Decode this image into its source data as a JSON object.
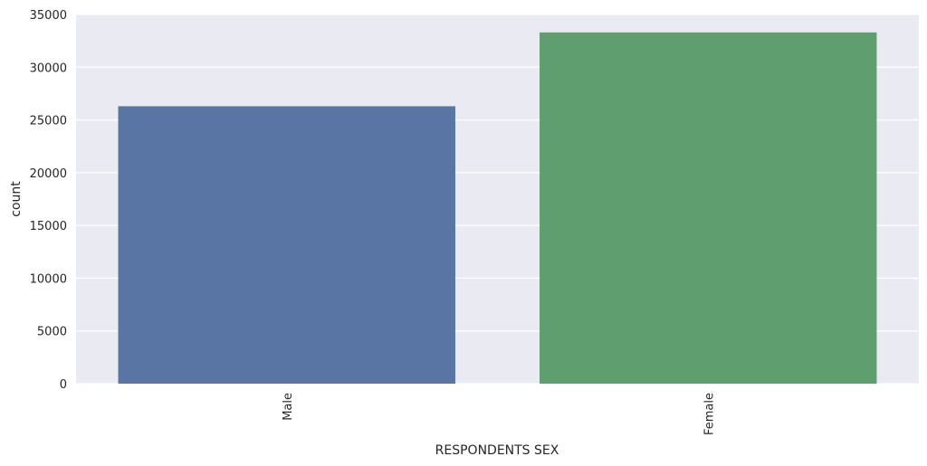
{
  "chart_data": {
    "type": "bar",
    "title": "",
    "xlabel": "RESPONDENTS SEX",
    "ylabel": "count",
    "categories": [
      "Male",
      "Female"
    ],
    "values": [
      26300,
      33300
    ],
    "colors": [
      "#5875a4",
      "#5f9e6e"
    ],
    "ylim": [
      0,
      35000
    ],
    "yticks": [
      0,
      5000,
      10000,
      15000,
      20000,
      25000,
      30000,
      35000
    ],
    "ytick_labels": [
      "0",
      "5000",
      "10000",
      "15000",
      "20000",
      "25000",
      "30000",
      "35000"
    ],
    "grid": true,
    "background": "#eaeaf2",
    "grid_color": "#ffffff",
    "legend": "none"
  }
}
